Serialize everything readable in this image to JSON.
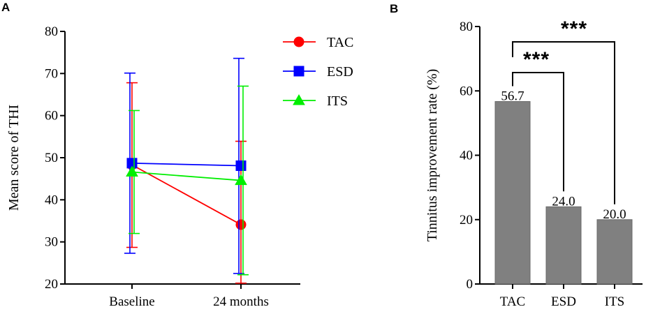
{
  "panel_a": {
    "label": "A"
  },
  "panel_b": {
    "label": "B"
  },
  "chart_data": [
    {
      "type": "line",
      "panel": "A",
      "title": "",
      "xlabel": "",
      "ylabel": "Mean score of THI",
      "categories": [
        "Baseline",
        "24 months"
      ],
      "ylim": [
        20,
        80
      ],
      "yticks": [
        20,
        30,
        40,
        50,
        60,
        70,
        80
      ],
      "series": [
        {
          "name": "TAC",
          "color": "#ff0000",
          "marker": "circle",
          "values": [
            48.3,
            34.1
          ],
          "err_low": [
            28.7,
            20.2
          ],
          "err_high": [
            67.8,
            53.9
          ]
        },
        {
          "name": "ESD",
          "color": "#0000ff",
          "marker": "square",
          "values": [
            48.7,
            48.1
          ],
          "err_low": [
            27.3,
            22.5
          ],
          "err_high": [
            70.1,
            73.6
          ]
        },
        {
          "name": "ITS",
          "color": "#00ee00",
          "marker": "triangle",
          "values": [
            46.6,
            44.6
          ],
          "err_low": [
            32.0,
            22.2
          ],
          "err_high": [
            61.2,
            67.0
          ]
        }
      ],
      "legend": "top-right"
    },
    {
      "type": "bar",
      "panel": "B",
      "title": "",
      "xlabel": "",
      "ylabel": "Tinnitus improvement rate (%)",
      "categories": [
        "TAC",
        "ESD",
        "ITS"
      ],
      "values": [
        56.7,
        24.0,
        20.0
      ],
      "labels": [
        "56.7",
        "24.0",
        "20.0"
      ],
      "ylim": [
        0,
        80
      ],
      "yticks": [
        0,
        20,
        40,
        60,
        80
      ],
      "bar_color": "#808080",
      "significance": [
        {
          "from": "TAC",
          "to": "ESD",
          "text": "***"
        },
        {
          "from": "TAC",
          "to": "ITS",
          "text": "***"
        }
      ]
    }
  ]
}
